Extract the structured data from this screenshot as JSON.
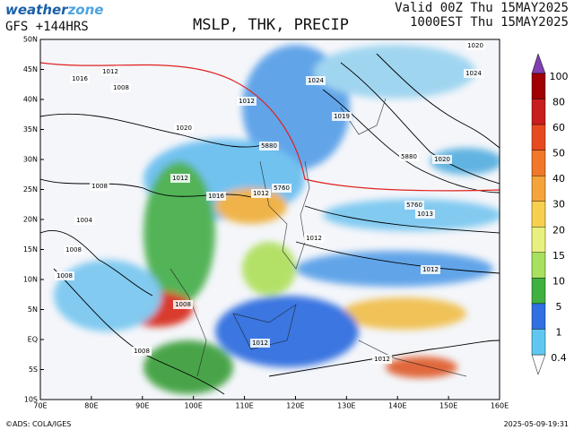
{
  "header": {
    "logo": {
      "part1": "weather",
      "part2": "zone"
    },
    "model": "GFS +144HRS",
    "title": "MSLP, THK, PRECIP",
    "valid": "Valid 00Z Thu 15MAY2025",
    "local": "1000EST Thu 15MAY2025"
  },
  "map": {
    "lat_labels": [
      "50N",
      "45N",
      "40N",
      "35N",
      "30N",
      "25N",
      "20N",
      "15N",
      "10N",
      "5N",
      "EQ",
      "5S",
      "10S"
    ],
    "lon_labels": [
      "70E",
      "80E",
      "90E",
      "100E",
      "110E",
      "120E",
      "130E",
      "140E",
      "150E",
      "160E"
    ],
    "isobar_labels": [
      "1012",
      "1008",
      "1016",
      "1020",
      "1024",
      "1012",
      "1008",
      "1004",
      "1008",
      "1012",
      "1016",
      "1012",
      "1012",
      "1013",
      "1020",
      "1019",
      "1008",
      "1012",
      "1008",
      "1008",
      "1012",
      "1012",
      "1024",
      "1020",
      "5760",
      "5760",
      "5880",
      "5880"
    ]
  },
  "colorbar": {
    "labels": [
      "100",
      "80",
      "60",
      "50",
      "40",
      "30",
      "20",
      "15",
      "10",
      "5",
      "1",
      "0.4"
    ]
  },
  "footer": {
    "credit": "©ADS: COLA/IGES",
    "timestamp": "2025-05-09-19:31"
  }
}
